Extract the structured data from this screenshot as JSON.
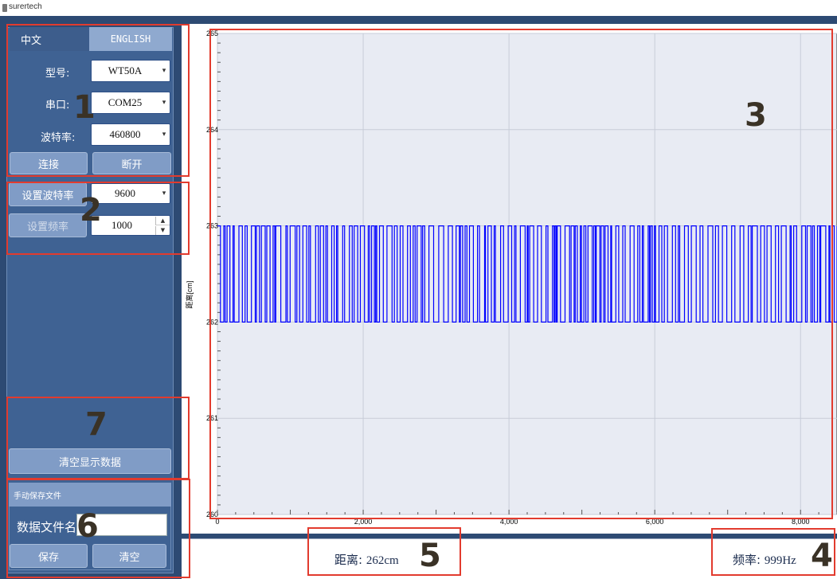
{
  "window": {
    "title": "surertech"
  },
  "language_tabs": {
    "chinese": "中文",
    "english": "ENGLISH"
  },
  "connection": {
    "model_label": "型号:",
    "model_value": "WT50A",
    "port_label": "串口:",
    "port_value": "COM25",
    "baud_label": "波特率:",
    "baud_value": "460800",
    "connect_button": "连接",
    "disconnect_button": "断开"
  },
  "settings": {
    "set_baud_button": "设置波特率",
    "set_baud_value": "9600",
    "set_freq_button": "设置频率",
    "set_freq_value": "1000"
  },
  "clear_display_button": "清空显示数据",
  "manual_save": {
    "title": "手动保存文件",
    "filename_label": "数据文件名",
    "filename_value": "",
    "save_button": "保存",
    "clear_button": "清空"
  },
  "status": {
    "distance_label": "距离:",
    "distance_value": "262cm",
    "frequency_label": "频率:",
    "frequency_value": "999Hz"
  },
  "annotations": [
    "1",
    "2",
    "3",
    "4",
    "5",
    "6",
    "7"
  ],
  "colors": {
    "panel": "#2d4a73",
    "button": "#809cc6",
    "series": "#0000ff",
    "annotation": "#e23b2e"
  },
  "chart_data": {
    "type": "line",
    "ylabel": "距离[cm]",
    "xlabel": "",
    "ylim": [
      260,
      265
    ],
    "xlim": [
      0,
      8500
    ],
    "y_ticks": [
      "265",
      "264",
      "263",
      "262",
      "261",
      "260"
    ],
    "x_ticks": [
      "0",
      "2,000",
      "4,000",
      "6,000",
      "8,000"
    ],
    "grid": true,
    "series": [
      {
        "values_description_free": true,
        "levels": [
          262,
          263
        ],
        "x_range": [
          0,
          8500
        ]
      }
    ]
  }
}
